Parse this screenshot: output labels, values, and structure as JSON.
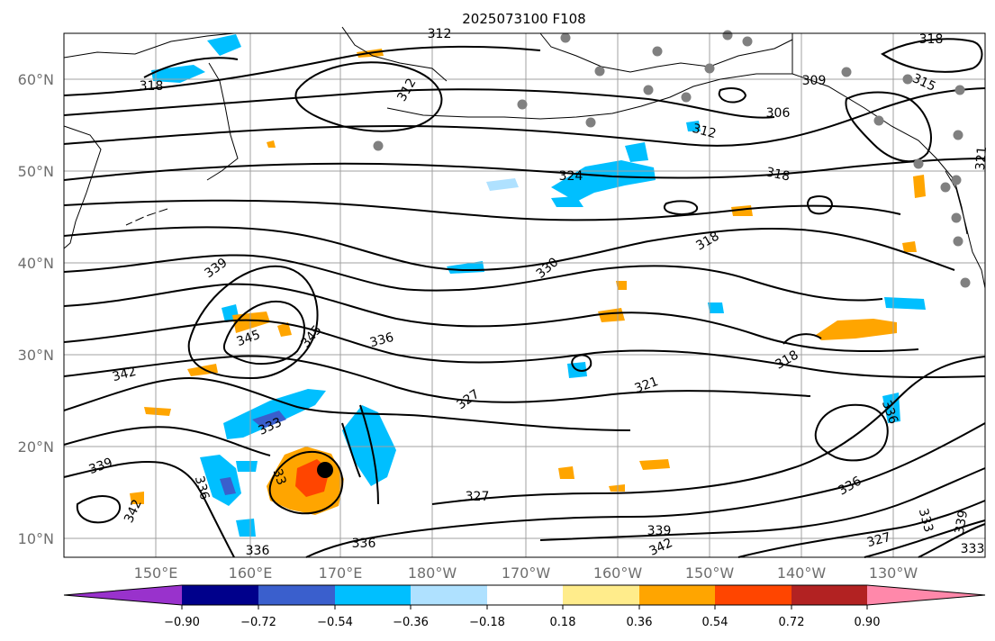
{
  "title": "2025073100 F108",
  "latitude_labels": [
    "60°N",
    "50°N",
    "40°N",
    "30°N",
    "20°N",
    "10°N"
  ],
  "longitude_labels": [
    "150°E",
    "160°E",
    "170°E",
    "180°W",
    "170°W",
    "160°W",
    "150°W",
    "140°W",
    "130°W"
  ],
  "colorbar": {
    "ticks": [
      "−0.90",
      "−0.72",
      "−0.54",
      "−0.36",
      "−0.18",
      "0.18",
      "0.36",
      "0.54",
      "0.72",
      "0.90"
    ],
    "colors": [
      "#9932cc",
      "#00008b",
      "#3a5fcd",
      "#00bfff",
      "#afe1ff",
      "#ffffff",
      "#ffec8b",
      "#ffa500",
      "#ff4500",
      "#b22222",
      "#ff88aa"
    ]
  },
  "contour_labels": {
    "c318_a": "318",
    "c312_a": "312",
    "c312_b": "312",
    "c309": "309",
    "c315": "315",
    "c318_b": "318",
    "c306": "306",
    "c312_c": "312",
    "c324": "324",
    "c318_c": "318",
    "c321_a": "321",
    "c318_d": "318",
    "c339_a": "339",
    "c330": "330",
    "c345_a": "345",
    "c345_b": "345",
    "c336_a": "336",
    "c342_a": "342",
    "c318_e": "318",
    "c321_b": "321",
    "c327_a": "327",
    "c333_a": "333",
    "c336_b": "336",
    "c339_b": "339",
    "c336_c": "336",
    "c342_b": "342",
    "c336_d": "336",
    "c327_b": "327",
    "c336_e": "336",
    "c336_f": "336",
    "c339_c": "339",
    "c342_c": "342",
    "c327_c": "327",
    "c333_b": "333",
    "c339_d": "339",
    "c333_c": "333",
    "c33x": "33"
  },
  "colors": {
    "grid": "#a0a0a0",
    "contour": "#000000",
    "station_marker": "#808080",
    "storm_marker": "#000000"
  }
}
